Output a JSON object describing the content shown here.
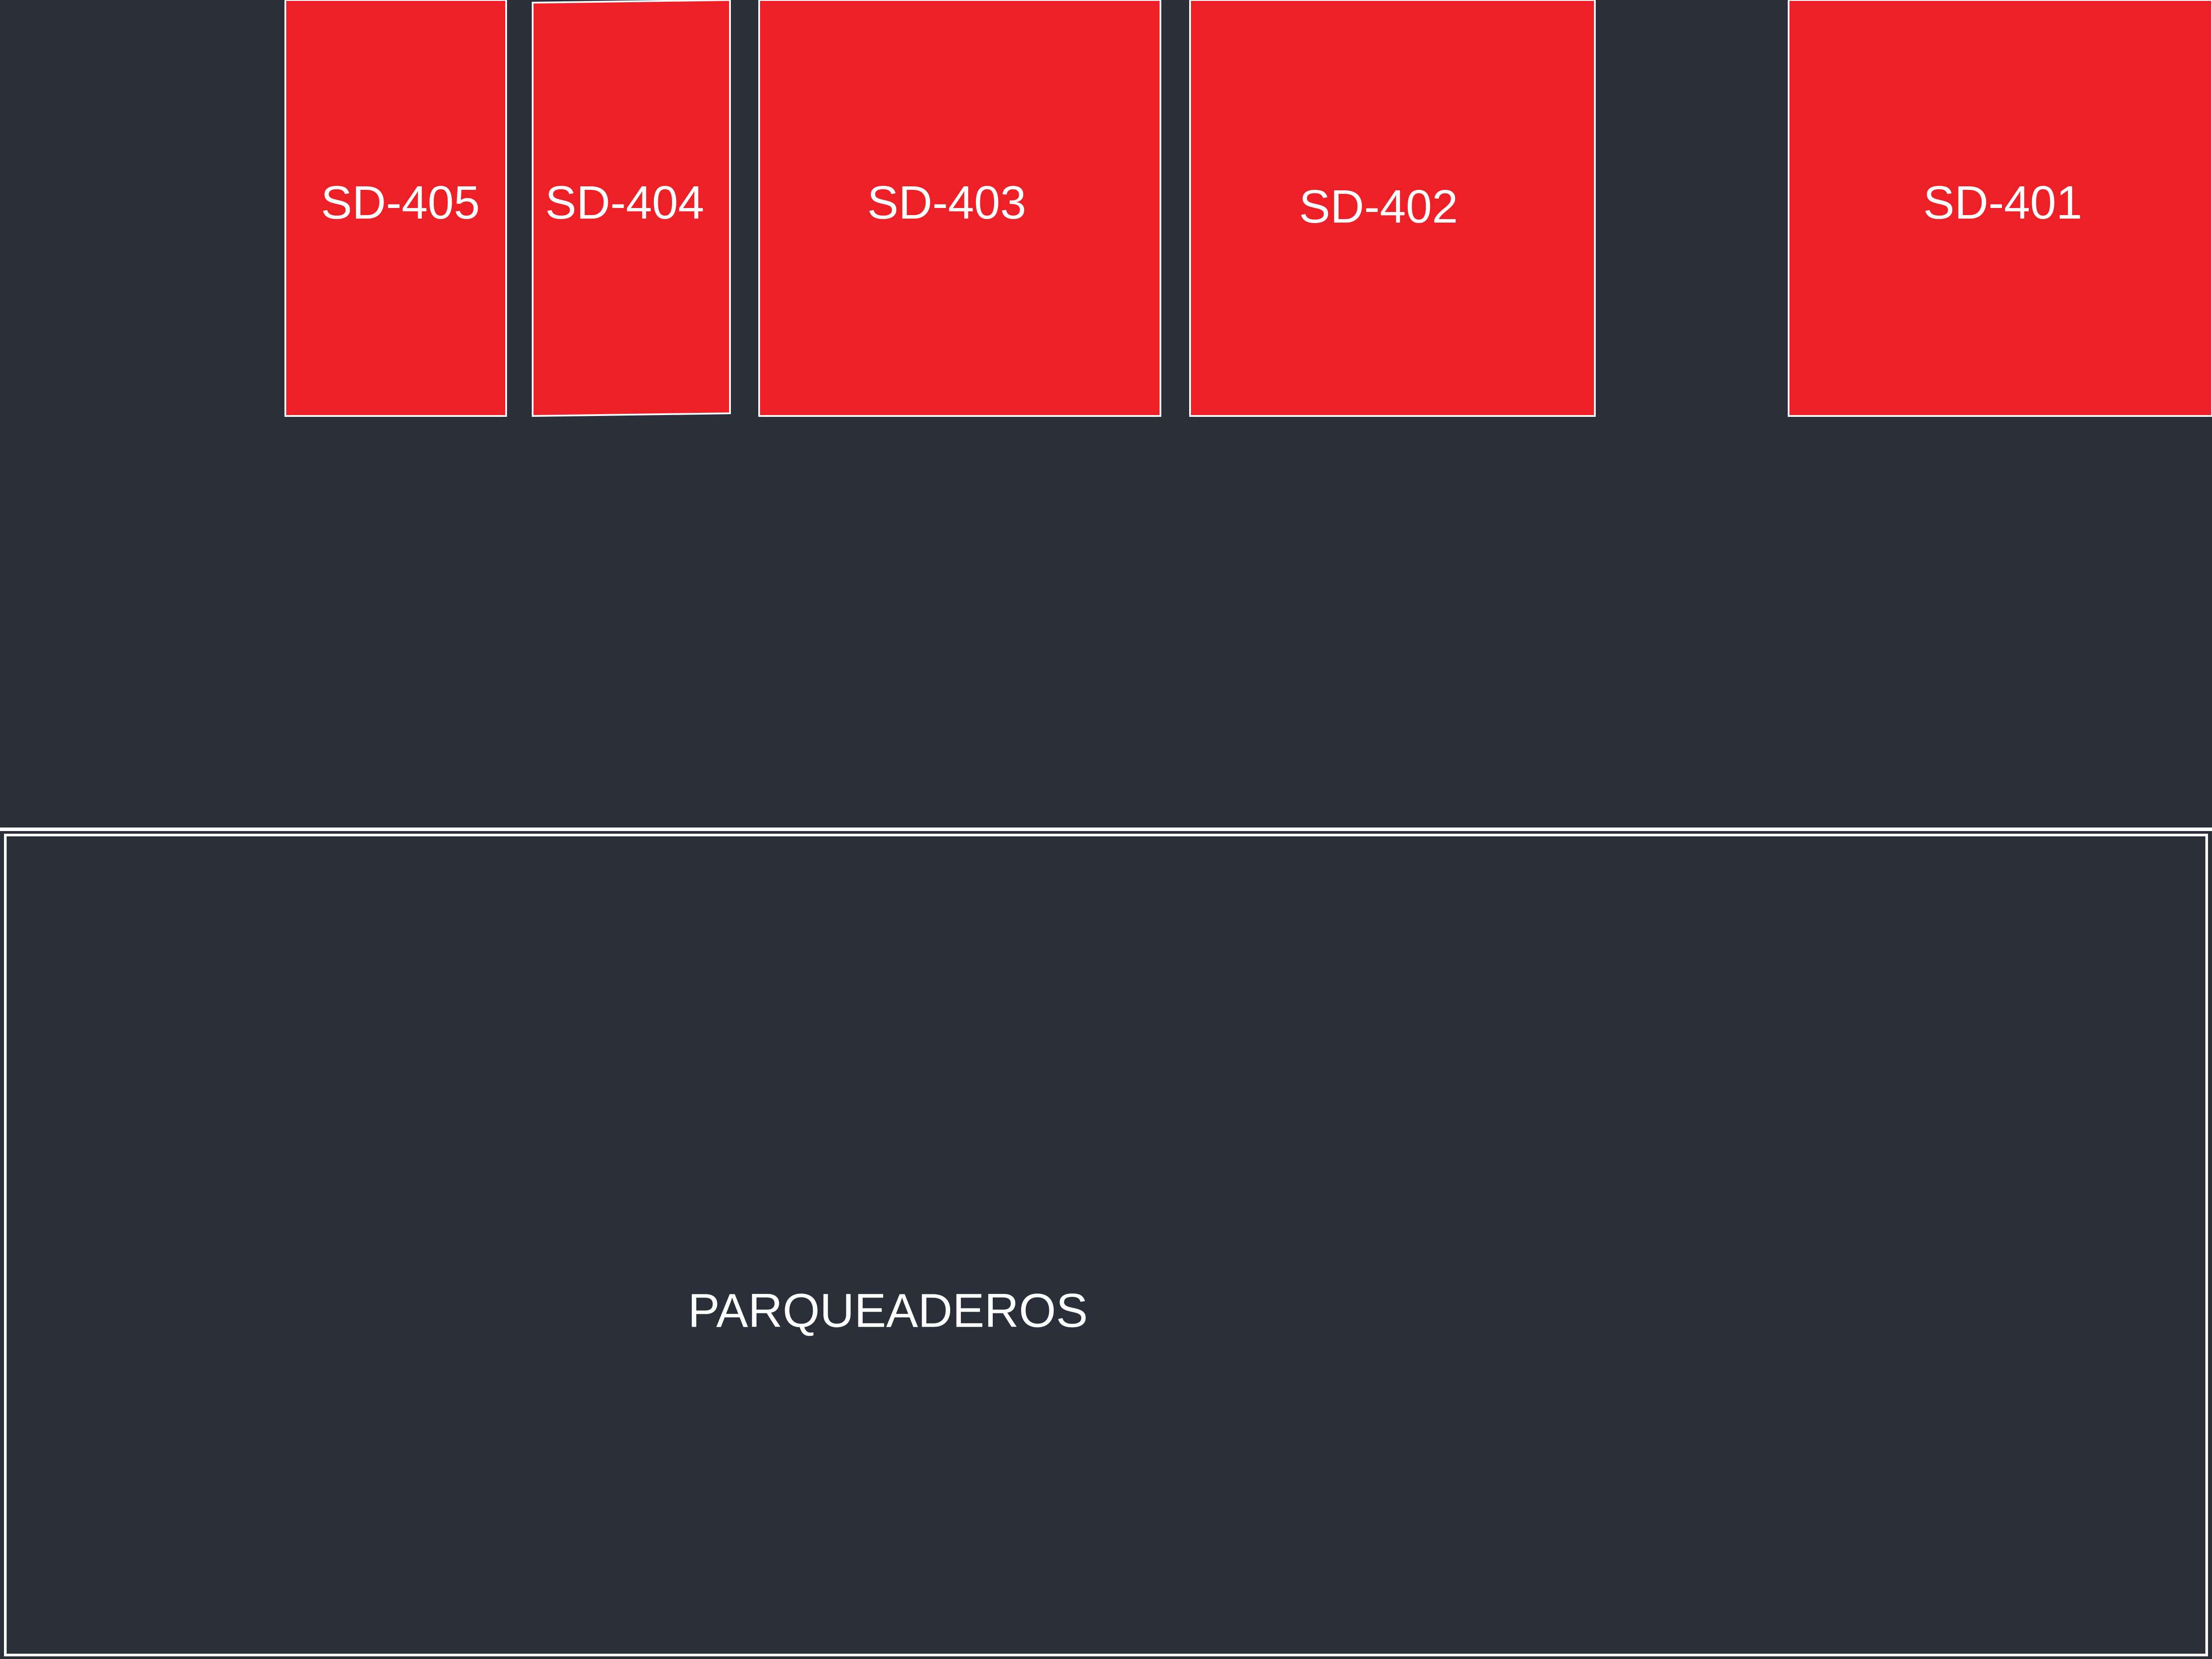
{
  "plan": {
    "colors": {
      "background": "#2b2f3a",
      "unit_fill": "#ed2027",
      "outline": "#ffffff"
    },
    "units": [
      {
        "id": "sd-405",
        "label": "SD-405"
      },
      {
        "id": "sd-404",
        "label": "SD-404"
      },
      {
        "id": "sd-403",
        "label": "SD-403"
      },
      {
        "id": "sd-402",
        "label": "SD-402"
      },
      {
        "id": "sd-401",
        "label": "SD-401"
      }
    ],
    "parking": {
      "label": "PARQUEADEROS"
    }
  }
}
